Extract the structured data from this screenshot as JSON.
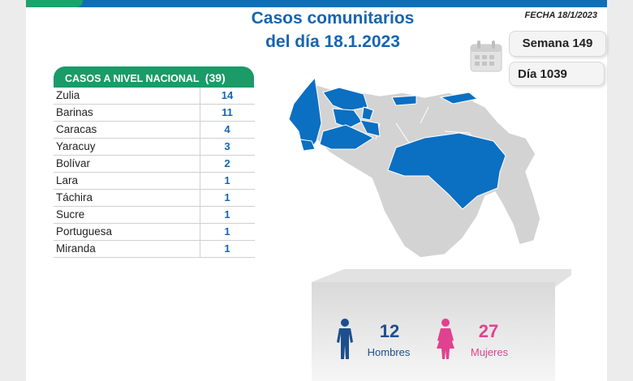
{
  "header": {
    "title_line1": "Casos comunitarios",
    "title_line2": "del día 18.1.2023",
    "fecha": "FECHA 18/1/2023"
  },
  "badges": {
    "semana": "Semana 149",
    "dia": "Día 1039"
  },
  "table": {
    "heading": "CASOS A NIVEL NACIONAL",
    "total": "(39)",
    "rows": [
      {
        "name": "Zulia",
        "value": "14"
      },
      {
        "name": "Barinas",
        "value": "11"
      },
      {
        "name": "Caracas",
        "value": "4"
      },
      {
        "name": "Yaracuy",
        "value": "3"
      },
      {
        "name": "Bolívar",
        "value": "2"
      },
      {
        "name": "Lara",
        "value": "1"
      },
      {
        "name": "Táchira",
        "value": "1"
      },
      {
        "name": "Sucre",
        "value": "1"
      },
      {
        "name": "Portuguesa",
        "value": "1"
      },
      {
        "name": "Miranda",
        "value": "1"
      }
    ]
  },
  "gender": {
    "men_value": "12",
    "men_label": "Hombres",
    "women_value": "27",
    "women_label": "Mujeres"
  },
  "colors": {
    "accent_blue": "#1565b0",
    "table_green": "#1a9b68",
    "map_blue": "#0b6fc2",
    "map_gray": "#d3d3d3",
    "women_pink": "#e0428f"
  },
  "icons": [
    "calendar-icon",
    "man-icon",
    "woman-icon",
    "venezuela-map"
  ]
}
